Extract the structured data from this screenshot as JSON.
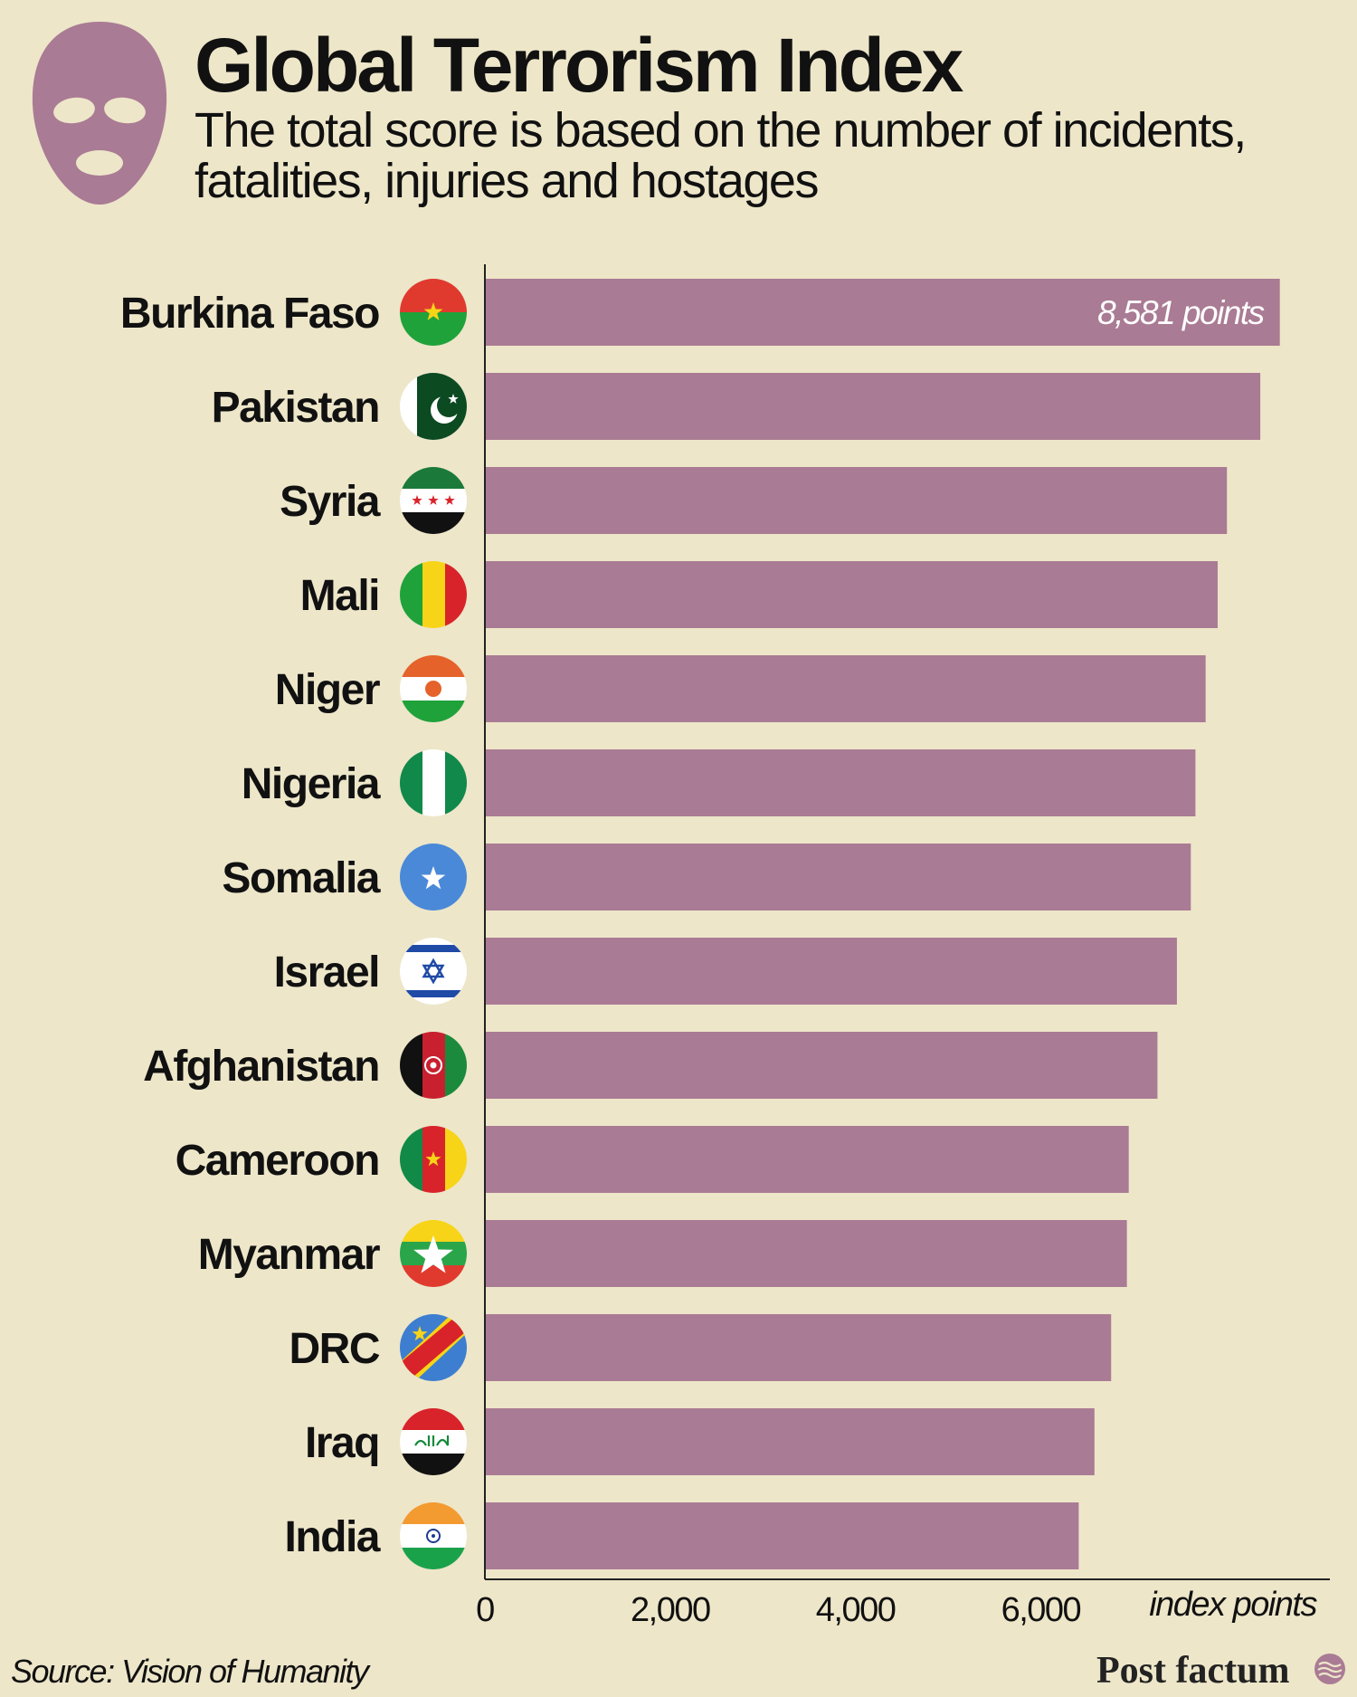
{
  "header": {
    "title": "Global Terrorism Index",
    "subtitle": "The total score is based on the number of incidents, fatalities, injuries and hostages",
    "icon": "mask-icon"
  },
  "footer": {
    "source": "Source: Vision of Humanity",
    "brand": "Post factum"
  },
  "colors": {
    "background": "#ede6c9",
    "bar": "#aa7b94",
    "text": "#111111"
  },
  "chart_data": {
    "type": "bar",
    "orientation": "horizontal",
    "title": "Global Terrorism Index",
    "subtitle": "The total score is based on the number of incidents, fatalities, injuries and hostages",
    "xlabel": "index points",
    "ylabel": "",
    "xlim": [
      0,
      9500
    ],
    "xticks": [
      {
        "value": 0,
        "label": "0"
      },
      {
        "value": 2000,
        "label": "2,000"
      },
      {
        "value": 4000,
        "label": "4,000"
      },
      {
        "value": 6000,
        "label": "6,000"
      }
    ],
    "grid": false,
    "categories": [
      "Burkina Faso",
      "Pakistan",
      "Syria",
      "Mali",
      "Niger",
      "Nigeria",
      "Somalia",
      "Israel",
      "Afghanistan",
      "Cameroon",
      "Myanmar",
      "DRC",
      "Iraq",
      "India"
    ],
    "flags": [
      "burkina-faso-flag-icon",
      "pakistan-flag-icon",
      "syria-flag-icon",
      "mali-flag-icon",
      "niger-flag-icon",
      "nigeria-flag-icon",
      "somalia-flag-icon",
      "israel-flag-icon",
      "afghanistan-flag-icon",
      "cameroon-flag-icon",
      "myanmar-flag-icon",
      "drc-flag-icon",
      "iraq-flag-icon",
      "india-flag-icon"
    ],
    "values": [
      8581,
      8370,
      8010,
      7910,
      7780,
      7670,
      7620,
      7470,
      7260,
      6950,
      6930,
      6760,
      6580,
      6410
    ],
    "data_labels": [
      {
        "index": 0,
        "text": "8,581 points"
      }
    ]
  }
}
